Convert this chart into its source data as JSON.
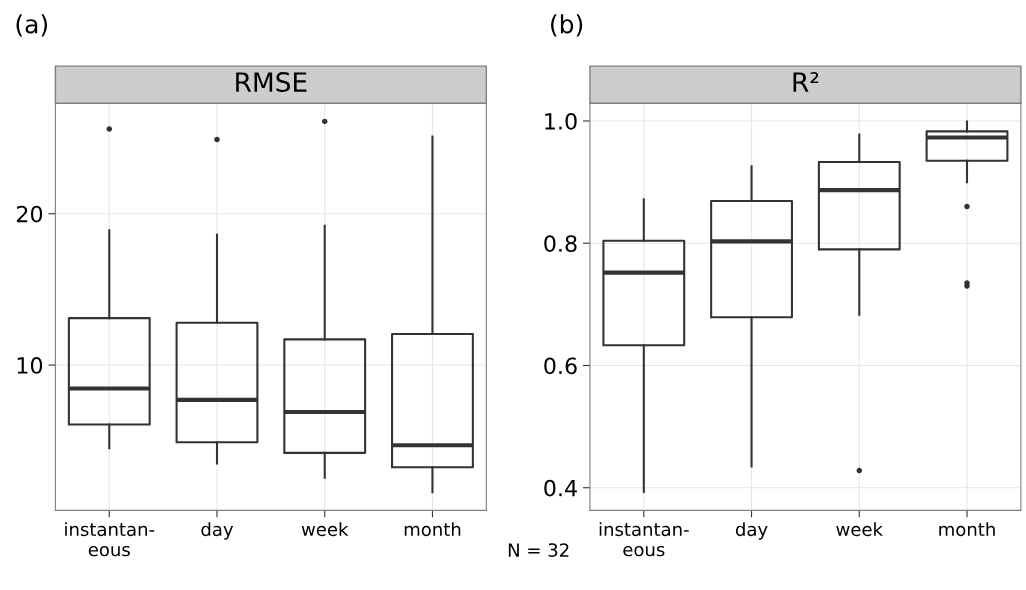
{
  "chart_data": [
    {
      "type": "box",
      "title": "(a)",
      "subtitle": "RMSE",
      "categories": [
        "instantan-\neous",
        "day",
        "week",
        "month"
      ],
      "boxes": [
        {
          "low": 4.5,
          "q1": 6.07,
          "median": 8.45,
          "q3": 13.1,
          "high": 18.9,
          "outliers": [
            25.6
          ]
        },
        {
          "low": 3.5,
          "q1": 4.9,
          "median": 7.7,
          "q3": 12.8,
          "high": 18.6,
          "outliers": [
            24.9
          ]
        },
        {
          "low": 2.55,
          "q1": 4.2,
          "median": 6.9,
          "q3": 11.7,
          "high": 19.2,
          "outliers": [
            26.1
          ]
        },
        {
          "low": 1.6,
          "q1": 3.25,
          "median": 4.7,
          "q3": 12.05,
          "high": 25.1
        }
      ],
      "ylim": [
        0.4,
        27.3
      ],
      "yticks": [
        10,
        20
      ],
      "grid": true,
      "annotations": [
        "N = 32"
      ]
    },
    {
      "type": "box",
      "title": "(b)",
      "subtitle": "R²",
      "categories": [
        "instantan-\neous",
        "day",
        "week",
        "month"
      ],
      "boxes": [
        {
          "low": 0.393,
          "q1": 0.633,
          "median": 0.752,
          "q3": 0.804,
          "high": 0.872
        },
        {
          "low": 0.435,
          "q1": 0.679,
          "median": 0.803,
          "q3": 0.869,
          "high": 0.926
        },
        {
          "low": 0.683,
          "q1": 0.79,
          "median": 0.887,
          "q3": 0.933,
          "high": 0.978,
          "outliers": [
            0.428
          ]
        },
        {
          "low": 0.9,
          "q1": 0.935,
          "median": 0.973,
          "q3": 0.983,
          "high": 0.999,
          "outliers": [
            0.86,
            0.735,
            0.73
          ]
        }
      ],
      "ylim": [
        0.363,
        1.029
      ],
      "yticks": [
        0.4,
        0.6,
        0.8,
        {
          "value": 1,
          "label": "1.0"
        }
      ],
      "grid": true
    }
  ]
}
